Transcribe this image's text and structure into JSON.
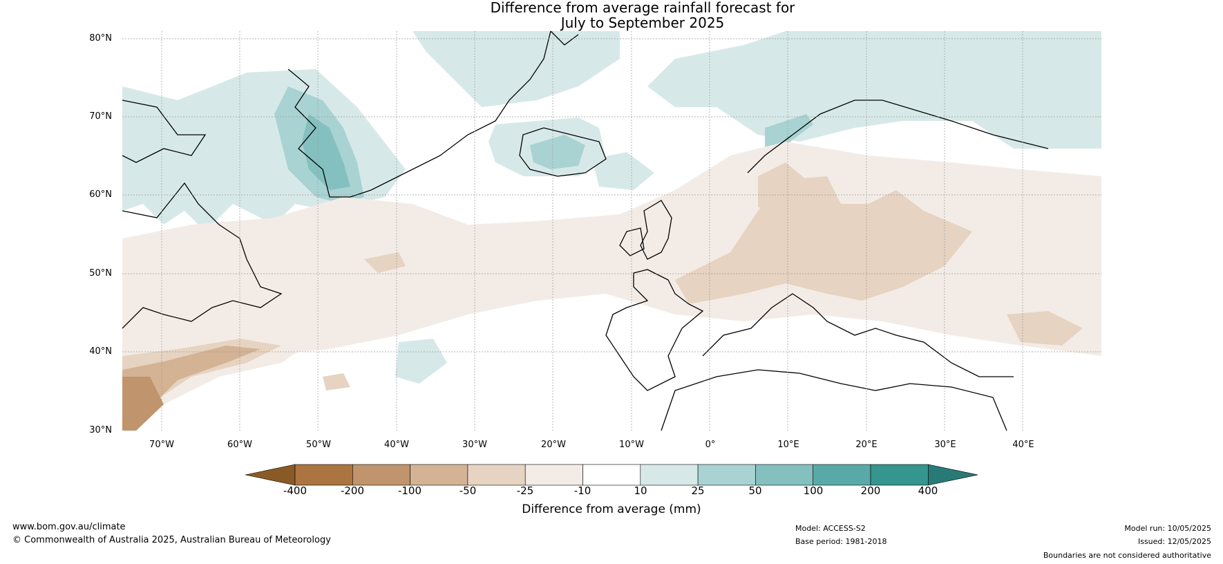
{
  "title": {
    "line1": "Difference from average rainfall forecast for",
    "line2": "July to September 2025"
  },
  "map": {
    "region": "North Atlantic and Europe",
    "lat_range": [
      30,
      81
    ],
    "lon_range": [
      -75,
      50
    ],
    "lat_labels": [
      "80°N",
      "70°N",
      "60°N",
      "50°N",
      "40°N",
      "30°N"
    ],
    "lon_labels": [
      "70°W",
      "60°W",
      "50°W",
      "40°W",
      "30°W",
      "20°W",
      "10°W",
      "0°",
      "10°E",
      "20°E",
      "30°E",
      "40°E"
    ]
  },
  "legend": {
    "title": "Difference from average (mm)",
    "ticks": [
      "-400",
      "-200",
      "-100",
      "-50",
      "-25",
      "-10",
      "10",
      "25",
      "50",
      "100",
      "200",
      "400"
    ],
    "colors": [
      "#8a5a26",
      "#ab7440",
      "#c0946c",
      "#d3b394",
      "#e6d3c1",
      "#f3ece6",
      "#ffffff",
      "#d6e9e8",
      "#a9d3d2",
      "#84c0bf",
      "#5aa9a9",
      "#35958f",
      "#287a77"
    ]
  },
  "footer": {
    "website": "www.bom.gov.au/climate",
    "copyright": "© Commonwealth of Australia 2025, Australian Bureau of Meteorology",
    "model": "Model: ACCESS-S2",
    "base_period": "Base period: 1981-2018",
    "model_run": "Model run: 10/05/2025",
    "issued": "Issued: 12/05/2025",
    "disclaimer": "Boundaries are not considered authoritative"
  }
}
